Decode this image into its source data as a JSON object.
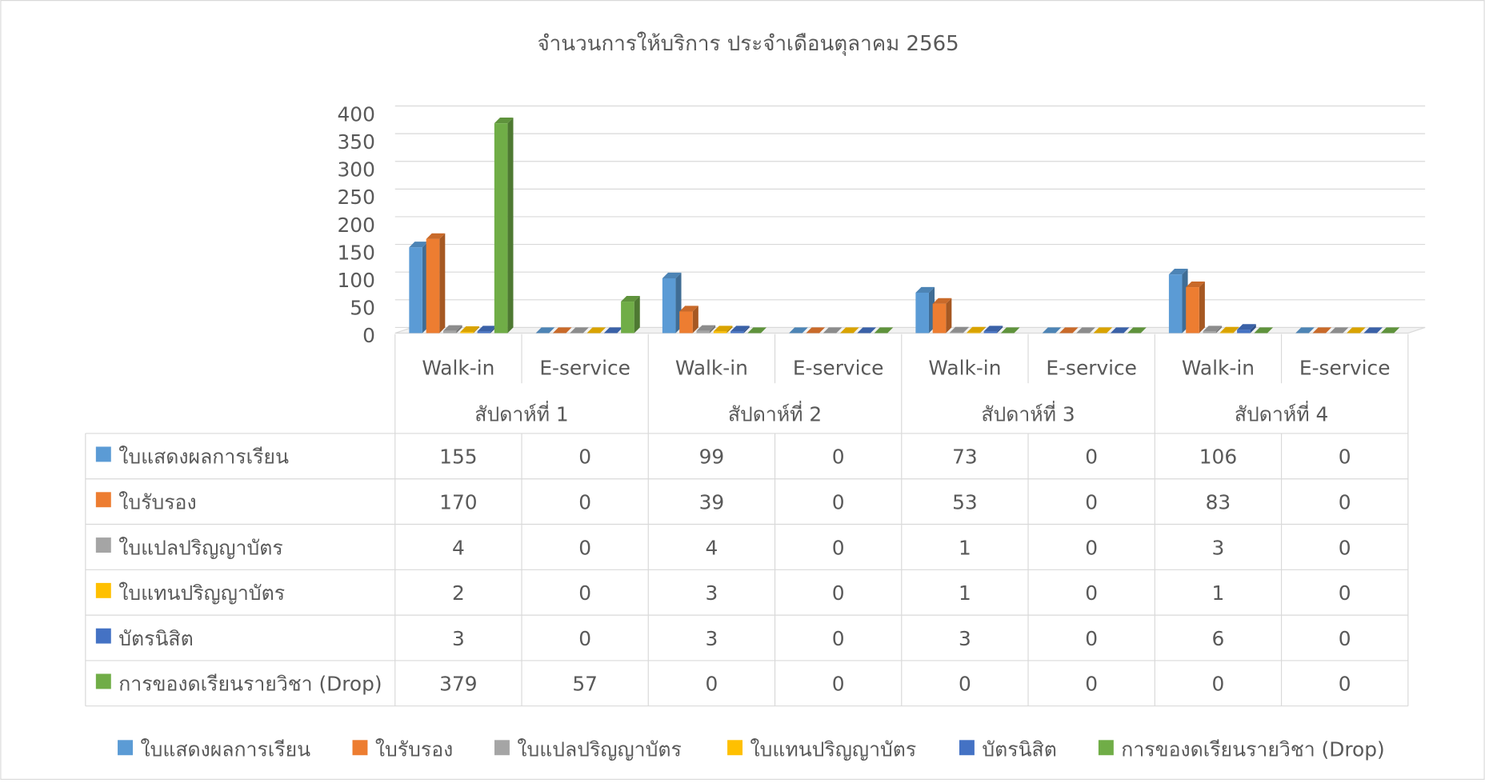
{
  "chart_data": {
    "type": "bar3d",
    "title": "จำนวนการให้บริการ ประจำเดือนตุลาคม 2565",
    "categories": [
      "Walk-in",
      "E-service",
      "Walk-in",
      "E-service",
      "Walk-in",
      "E-service",
      "Walk-in",
      "E-service"
    ],
    "groups": [
      "สัปดาห์ที่ 1",
      "สัปดาห์ที่ 2",
      "สัปดาห์ที่ 3",
      "สัปดาห์ที่ 4"
    ],
    "series": [
      {
        "name": "ใบแสดงผลการเรียน",
        "color": "#5b9bd5",
        "values": [
          155,
          0,
          99,
          0,
          73,
          0,
          106,
          0
        ]
      },
      {
        "name": "ใบรับรอง",
        "color": "#ed7d31",
        "values": [
          170,
          0,
          39,
          0,
          53,
          0,
          83,
          0
        ]
      },
      {
        "name": "ใบแปลปริญญาบัตร",
        "color": "#a5a5a5",
        "values": [
          4,
          0,
          4,
          0,
          1,
          0,
          3,
          0
        ]
      },
      {
        "name": "ใบแทนปริญญาบัตร",
        "color": "#ffc000",
        "values": [
          2,
          0,
          3,
          0,
          1,
          0,
          1,
          0
        ]
      },
      {
        "name": "บัตรนิสิต",
        "color": "#4472c4",
        "values": [
          3,
          0,
          3,
          0,
          3,
          0,
          6,
          0
        ]
      },
      {
        "name": "การของดเรียนรายวิชา (Drop)",
        "color": "#70ad47",
        "values": [
          379,
          57,
          0,
          0,
          0,
          0,
          0,
          0
        ]
      }
    ],
    "ylim": [
      0,
      400
    ],
    "yticks": [
      0,
      50,
      100,
      150,
      200,
      250,
      300,
      350,
      400
    ],
    "grid": true,
    "legend": "bottom"
  }
}
